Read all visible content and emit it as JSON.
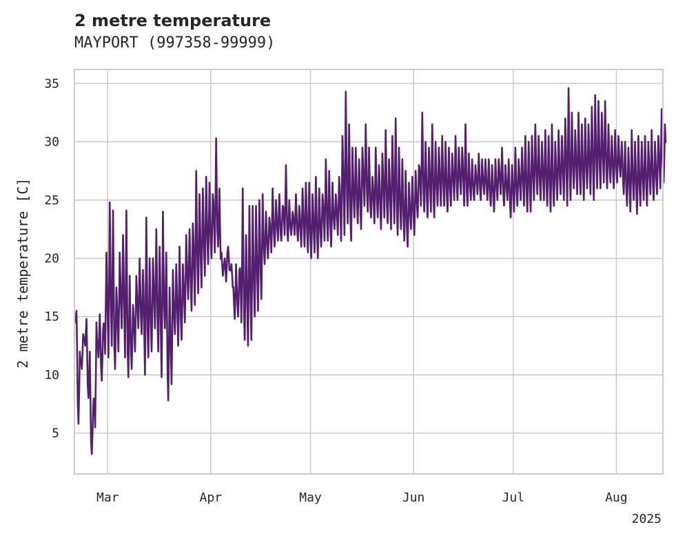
{
  "chart_data": {
    "type": "line",
    "title": "2 metre temperature",
    "subtitle": "MAYPORT (997358-99999)",
    "ylabel": "2 metre temperature [C]",
    "xlabel": "",
    "x_range": [
      "2025-02-19",
      "2025-08-15"
    ],
    "ylim": [
      1.5,
      36.2
    ],
    "y_ticks": [
      5,
      10,
      15,
      20,
      25,
      30,
      35
    ],
    "x_ticks": [
      {
        "label": "Mar",
        "date": "2025-03-01"
      },
      {
        "label": "Apr",
        "date": "2025-04-01"
      },
      {
        "label": "May",
        "date": "2025-05-01"
      },
      {
        "label": "Jun",
        "date": "2025-06-01"
      },
      {
        "label": "Jul",
        "date": "2025-07-01"
      },
      {
        "label": "Aug",
        "date": "2025-08-01"
      }
    ],
    "x_offset_label": "2025",
    "grid": true,
    "line_color": "#541f6e",
    "series": [
      {
        "x": [
          "2025-02-19",
          "2025-02-20",
          "2025-02-21",
          "2025-02-22",
          "2025-02-23",
          "2025-02-24",
          "2025-02-25",
          "2025-02-26",
          "2025-02-27",
          "2025-02-28",
          "2025-03-01",
          "2025-03-02",
          "2025-03-03",
          "2025-03-04",
          "2025-03-05",
          "2025-03-06",
          "2025-03-07",
          "2025-03-08",
          "2025-03-09",
          "2025-03-10",
          "2025-03-11",
          "2025-03-12",
          "2025-03-13",
          "2025-03-14",
          "2025-03-15",
          "2025-03-16",
          "2025-03-17",
          "2025-03-18",
          "2025-03-19",
          "2025-03-20",
          "2025-03-21",
          "2025-03-22",
          "2025-03-23",
          "2025-03-24",
          "2025-03-25",
          "2025-03-26",
          "2025-03-27",
          "2025-03-28",
          "2025-03-29",
          "2025-03-30",
          "2025-03-31",
          "2025-04-01",
          "2025-04-02",
          "2025-04-03",
          "2025-04-04",
          "2025-04-05",
          "2025-04-06",
          "2025-04-07",
          "2025-04-08",
          "2025-04-09",
          "2025-04-10",
          "2025-04-11",
          "2025-04-12",
          "2025-04-13",
          "2025-04-14",
          "2025-04-15",
          "2025-04-16",
          "2025-04-17",
          "2025-04-18",
          "2025-04-19",
          "2025-04-20",
          "2025-04-21",
          "2025-04-22",
          "2025-04-23",
          "2025-04-24",
          "2025-04-25",
          "2025-04-26",
          "2025-04-27",
          "2025-04-28",
          "2025-04-29",
          "2025-04-30",
          "2025-05-01",
          "2025-05-02",
          "2025-05-03",
          "2025-05-04",
          "2025-05-05",
          "2025-05-06",
          "2025-05-07",
          "2025-05-08",
          "2025-05-09",
          "2025-05-10",
          "2025-05-11",
          "2025-05-12",
          "2025-05-13",
          "2025-05-14",
          "2025-05-15",
          "2025-05-16",
          "2025-05-17",
          "2025-05-18",
          "2025-05-19",
          "2025-05-20",
          "2025-05-21",
          "2025-05-22",
          "2025-05-23",
          "2025-05-24",
          "2025-05-25",
          "2025-05-26",
          "2025-05-27",
          "2025-05-28",
          "2025-05-29",
          "2025-05-30",
          "2025-05-31",
          "2025-06-01",
          "2025-06-02",
          "2025-06-03",
          "2025-06-04",
          "2025-06-05",
          "2025-06-06",
          "2025-06-07",
          "2025-06-08",
          "2025-06-09",
          "2025-06-10",
          "2025-06-11",
          "2025-06-12",
          "2025-06-13",
          "2025-06-14",
          "2025-06-15",
          "2025-06-16",
          "2025-06-17",
          "2025-06-18",
          "2025-06-19",
          "2025-06-20",
          "2025-06-21",
          "2025-06-22",
          "2025-06-23",
          "2025-06-24",
          "2025-06-25",
          "2025-06-26",
          "2025-06-27",
          "2025-06-28",
          "2025-06-29",
          "2025-06-30",
          "2025-07-01",
          "2025-07-02",
          "2025-07-03",
          "2025-07-04",
          "2025-07-05",
          "2025-07-06",
          "2025-07-07",
          "2025-07-08",
          "2025-07-09",
          "2025-07-10",
          "2025-07-11",
          "2025-07-12",
          "2025-07-13",
          "2025-07-14",
          "2025-07-15",
          "2025-07-16",
          "2025-07-17",
          "2025-07-18",
          "2025-07-19",
          "2025-07-20",
          "2025-07-21",
          "2025-07-22",
          "2025-07-23",
          "2025-07-24",
          "2025-07-25",
          "2025-07-26",
          "2025-07-27",
          "2025-07-28",
          "2025-07-29",
          "2025-07-30",
          "2025-07-31",
          "2025-08-01",
          "2025-08-02",
          "2025-08-03",
          "2025-08-04",
          "2025-08-05",
          "2025-08-06",
          "2025-08-07",
          "2025-08-08",
          "2025-08-09",
          "2025-08-10",
          "2025-08-11",
          "2025-08-12",
          "2025-08-13",
          "2025-08-14",
          "2025-08-15"
        ],
        "min": [
          14.5,
          5.8,
          10.5,
          12.5,
          8.0,
          3.2,
          5.5,
          11.5,
          9.5,
          11.8,
          11.5,
          12.5,
          10.5,
          12.0,
          14.0,
          11.5,
          9.8,
          10.5,
          12.0,
          14.0,
          13.5,
          10.0,
          11.5,
          12.0,
          14.0,
          12.0,
          9.8,
          14.0,
          7.8,
          9.2,
          13.5,
          12.5,
          13.0,
          14.5,
          16.5,
          15.5,
          16.0,
          17.0,
          17.5,
          18.5,
          19.5,
          20.0,
          20.5,
          21.0,
          20.5,
          20.0,
          21.0,
          19.5,
          14.8,
          15.0,
          14.5,
          13.0,
          12.5,
          13.0,
          15.0,
          15.5,
          16.5,
          19.5,
          20.0,
          20.5,
          21.0,
          21.5,
          21.5,
          22.0,
          21.5,
          22.0,
          22.0,
          21.5,
          21.0,
          21.0,
          20.5,
          20.0,
          20.5,
          20.0,
          21.0,
          21.5,
          21.5,
          21.0,
          22.5,
          22.0,
          21.5,
          22.0,
          23.0,
          21.5,
          23.5,
          23.0,
          22.5,
          24.5,
          24.0,
          23.5,
          23.0,
          23.5,
          22.5,
          23.5,
          23.0,
          22.5,
          23.0,
          22.0,
          22.5,
          21.5,
          21.0,
          22.5,
          22.0,
          23.5,
          24.5,
          24.0,
          23.5,
          24.0,
          23.5,
          24.5,
          24.5,
          24.5,
          24.0,
          24.5,
          25.0,
          25.0,
          25.5,
          24.5,
          24.5,
          25.0,
          25.0,
          25.5,
          25.0,
          25.5,
          25.0,
          24.5,
          24.0,
          25.0,
          25.5,
          24.5,
          25.0,
          23.5,
          24.0,
          24.5,
          25.0,
          24.5,
          24.0,
          24.0,
          25.0,
          25.5,
          25.0,
          25.0,
          24.5,
          24.0,
          24.5,
          25.0,
          25.5,
          25.0,
          24.5,
          25.0,
          26.0,
          25.5,
          25.5,
          25.0,
          26.0,
          25.5,
          25.0,
          26.0,
          26.0,
          26.5,
          26.0,
          26.5,
          26.0,
          26.5,
          27.0,
          25.5,
          24.5,
          24.0,
          25.0,
          23.8,
          24.5,
          25.0,
          24.5,
          25.5,
          25.0,
          25.5,
          26.0,
          26.5,
          26.0,
          27.0,
          27.0,
          26.5
        ],
        "max": [
          15.5,
          12.0,
          13.5,
          14.8,
          12.0,
          7.0,
          14.5,
          15.2,
          13.8,
          20.5,
          24.8,
          24.1,
          17.5,
          20.5,
          22.0,
          24.1,
          18.5,
          16.0,
          18.5,
          20.0,
          19.0,
          23.5,
          20.0,
          20.0,
          22.5,
          21.0,
          24.0,
          20.5,
          17.5,
          19.0,
          19.5,
          21.0,
          19.5,
          22.0,
          22.5,
          23.0,
          27.5,
          25.5,
          26.0,
          27.0,
          26.5,
          25.5,
          30.3,
          26.0,
          18.5,
          18.0,
          19.0,
          17.5,
          19.5,
          19.0,
          26.0,
          22.0,
          24.5,
          24.5,
          24.5,
          25.0,
          25.5,
          24.0,
          23.5,
          26.0,
          25.0,
          25.5,
          24.5,
          28.0,
          25.0,
          24.0,
          25.5,
          24.5,
          26.0,
          26.5,
          26.5,
          25.5,
          27.0,
          26.0,
          25.5,
          28.5,
          27.5,
          26.5,
          25.5,
          27.0,
          30.5,
          34.3,
          31.5,
          29.5,
          29.5,
          28.5,
          29.5,
          31.5,
          29.5,
          27.0,
          29.5,
          28.0,
          29.0,
          31.0,
          28.5,
          30.5,
          32.0,
          29.5,
          28.5,
          27.5,
          26.5,
          27.0,
          27.5,
          28.0,
          32.5,
          30.0,
          29.5,
          31.5,
          30.0,
          29.5,
          30.5,
          30.0,
          29.5,
          29.0,
          30.5,
          29.5,
          29.5,
          31.5,
          29.0,
          28.5,
          28.0,
          29.0,
          28.5,
          28.5,
          28.5,
          28.0,
          28.5,
          28.5,
          29.5,
          28.0,
          28.5,
          28.0,
          29.5,
          28.5,
          29.5,
          30.5,
          30.0,
          30.5,
          31.5,
          30.5,
          30.0,
          31.0,
          30.5,
          31.5,
          30.0,
          31.0,
          30.5,
          32.0,
          34.6,
          32.5,
          31.0,
          32.5,
          31.5,
          32.0,
          31.5,
          33.0,
          34.0,
          33.5,
          32.5,
          33.5,
          31.5,
          30.5,
          31.0,
          30.5,
          30.0,
          30.0,
          29.5,
          31.0,
          30.0,
          30.5,
          30.0,
          30.5,
          30.0,
          31.0,
          30.0,
          30.5,
          32.8,
          31.5
        ]
      }
    ]
  }
}
